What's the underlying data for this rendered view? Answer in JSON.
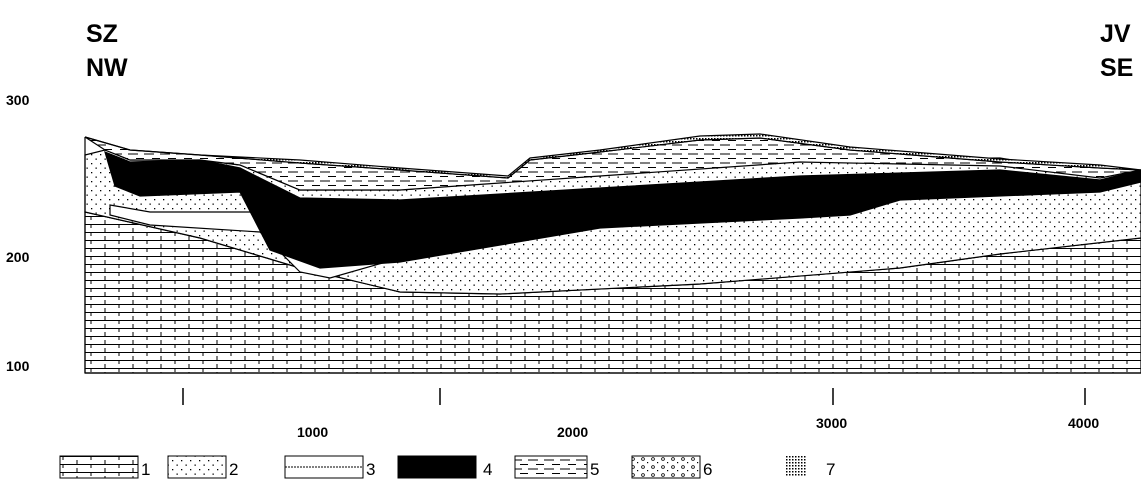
{
  "header": {
    "left": [
      "SZ",
      "NW"
    ],
    "right": [
      "JV",
      "SE"
    ]
  },
  "y_axis": {
    "labels": [
      "300",
      "200",
      "100"
    ]
  },
  "x_axis": {
    "labels": [
      "1000",
      "2000",
      "3000",
      "4000"
    ]
  },
  "legend": {
    "items": [
      "1",
      "2",
      "3",
      "4",
      "5",
      "6",
      "7"
    ]
  }
}
